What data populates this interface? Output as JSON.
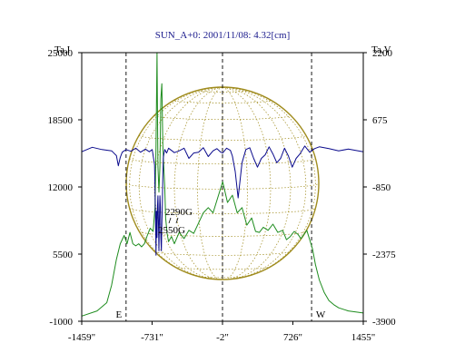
{
  "chart_data": {
    "type": "line",
    "title": "SUN_A+0: 2001/11/08: 4.32[cm]",
    "y_left_label": "Ta,I",
    "y_right_label": "Ta,V",
    "x_ticks": [
      "-1459\"",
      "-731\"",
      "-2\"",
      "726\"",
      "1455\""
    ],
    "x_tick_values": [
      -1459,
      -731,
      -2,
      726,
      1455
    ],
    "xlim": [
      -1459,
      1455
    ],
    "y_left_ticks": [
      "25000",
      "18500",
      "12000",
      "5500",
      "-1000"
    ],
    "y_left_tick_values": [
      25000,
      18500,
      12000,
      5500,
      -1000
    ],
    "ylim_left": [
      -1000,
      25000
    ],
    "y_right_ticks": [
      "2200",
      "675",
      "-850",
      "-2375",
      "-3900"
    ],
    "y_right_tick_values": [
      2200,
      675,
      -850,
      -2375,
      -3900
    ],
    "ylim_right": [
      -3900,
      2200
    ],
    "vertical_markers": [
      {
        "x": -1000,
        "label": "E"
      },
      {
        "x": -2,
        "label": ""
      },
      {
        "x": 920,
        "label": "W"
      }
    ],
    "annotations": [
      "2290G",
      "2550G"
    ],
    "colors": {
      "intensity": "#1e8c1e",
      "polarization": "#0a0a8c",
      "disk": "#a08c1e",
      "title": "#1a1a8c"
    },
    "series": [
      {
        "axis": "left",
        "color": "#1e8c1e",
        "x": [
          -1459,
          -1300,
          -1200,
          -1150,
          -1100,
          -1060,
          -1020,
          -990,
          -960,
          -930,
          -900,
          -870,
          -840,
          -810,
          -780,
          -750,
          -720,
          -700,
          -690,
          -680,
          -670,
          -660,
          -650,
          -640,
          -630,
          -620,
          -610,
          -600,
          -590,
          -575,
          -560,
          -530,
          -500,
          -450,
          -400,
          -350,
          -300,
          -250,
          -200,
          -150,
          -100,
          -50,
          0,
          50,
          100,
          150,
          200,
          250,
          300,
          340,
          380,
          420,
          470,
          520,
          570,
          620,
          660,
          700,
          740,
          780,
          810,
          840,
          870,
          900,
          930,
          960,
          1000,
          1050,
          1100,
          1150,
          1200,
          1300,
          1455
        ],
        "values": [
          -500,
          0,
          800,
          2500,
          5000,
          6500,
          7300,
          6500,
          7600,
          6500,
          6300,
          6500,
          6200,
          6500,
          7300,
          8000,
          7700,
          10000,
          16000,
          25000,
          14000,
          11500,
          14000,
          20500,
          22000,
          16000,
          14000,
          12000,
          9000,
          7500,
          6700,
          7200,
          6500,
          7600,
          7000,
          7800,
          7500,
          8500,
          9500,
          10000,
          9500,
          11000,
          12500,
          10500,
          11200,
          9500,
          10000,
          8300,
          9000,
          7700,
          7600,
          8100,
          7800,
          8400,
          7600,
          7800,
          6900,
          7200,
          7700,
          7400,
          7000,
          7400,
          7800,
          6900,
          6000,
          4500,
          3000,
          1800,
          1000,
          600,
          300,
          0,
          -200
        ]
      },
      {
        "axis": "right",
        "color": "#0a0a8c",
        "x": [
          -1459,
          -1350,
          -1250,
          -1150,
          -1100,
          -1080,
          -1060,
          -1040,
          -1000,
          -950,
          -900,
          -850,
          -800,
          -760,
          -730,
          -705,
          -695,
          -690,
          -685,
          -680,
          -675,
          -670,
          -665,
          -660,
          -655,
          -650,
          -645,
          -640,
          -635,
          -630,
          -625,
          -620,
          -615,
          -610,
          -600,
          -580,
          -560,
          -500,
          -450,
          -400,
          -350,
          -300,
          -250,
          -200,
          -150,
          -100,
          -60,
          -20,
          0,
          40,
          80,
          100,
          130,
          160,
          200,
          240,
          280,
          320,
          360,
          400,
          440,
          480,
          520,
          560,
          600,
          640,
          680,
          720,
          760,
          800,
          850,
          900,
          950,
          1000,
          1100,
          1200,
          1300,
          1455
        ],
        "values": [
          -50,
          50,
          0,
          -30,
          -140,
          -370,
          -180,
          -60,
          0,
          -40,
          30,
          -60,
          10,
          -50,
          0,
          -350,
          -1600,
          -2400,
          -1400,
          -2000,
          -1300,
          -1050,
          -1700,
          -2300,
          -1600,
          -1050,
          -1300,
          -2000,
          -2300,
          -1700,
          -1300,
          -600,
          -200,
          -120,
          0,
          -80,
          30,
          -70,
          -30,
          30,
          -200,
          -80,
          -60,
          40,
          -160,
          -30,
          20,
          -60,
          -80,
          30,
          -20,
          -150,
          -500,
          -1100,
          -300,
          0,
          40,
          -200,
          -400,
          -200,
          -120,
          60,
          -100,
          -300,
          -200,
          30,
          -150,
          -400,
          -200,
          -100,
          80,
          -60,
          20,
          60,
          20,
          -30,
          10,
          -50
        ]
      }
    ]
  }
}
